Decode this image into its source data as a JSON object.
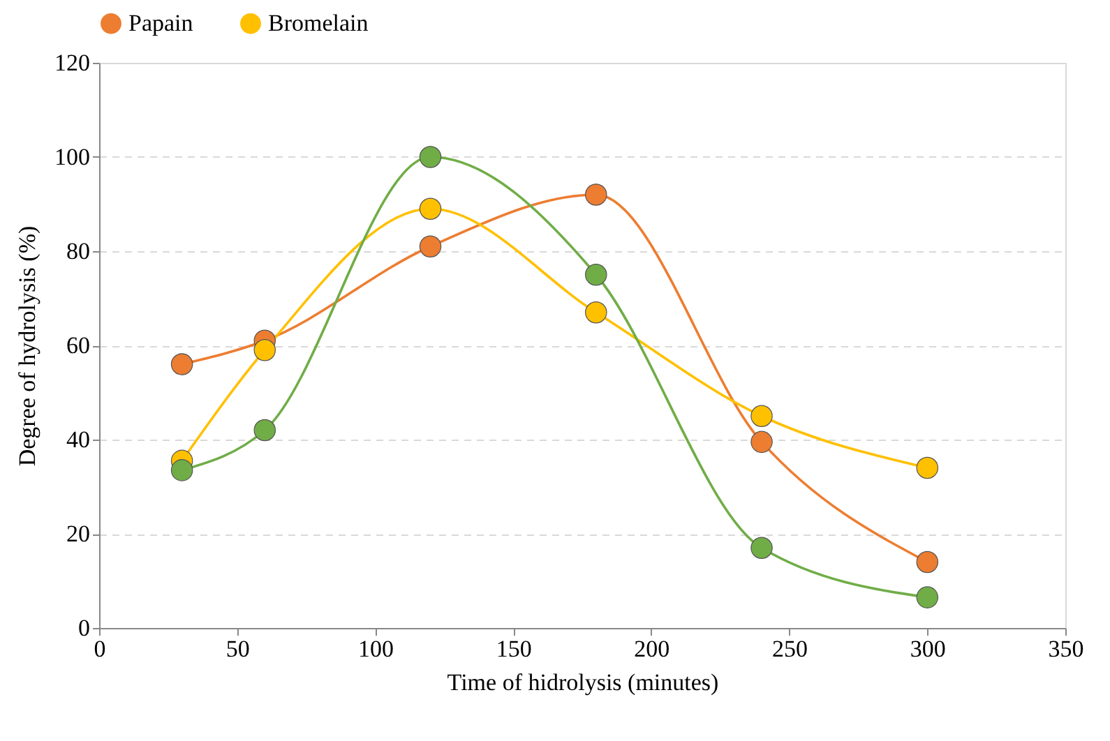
{
  "chart_data": {
    "type": "line",
    "xlabel": "Time of hidrolysis (minutes)",
    "ylabel": "Degree of hydrolysis (%)",
    "x": [
      30,
      60,
      120,
      180,
      240,
      300
    ],
    "series": [
      {
        "name": "Papain",
        "color": "#ed7d31",
        "values": [
          56,
          61,
          81,
          92,
          39.5,
          14
        ]
      },
      {
        "name": "Bromelain",
        "color": "#ffc000",
        "values": [
          35.5,
          59,
          89,
          67,
          45,
          34
        ]
      },
      {
        "color": "#70ad47",
        "values": [
          33.5,
          42,
          100,
          75,
          17,
          6.5
        ]
      }
    ],
    "xlim": [
      0,
      350
    ],
    "xticks": [
      0,
      50,
      100,
      150,
      200,
      250,
      300,
      350
    ],
    "ylim": [
      0,
      120
    ],
    "yticks": [
      0,
      20,
      40,
      60,
      80,
      100,
      120
    ],
    "grid": "y",
    "legend": "top",
    "marker": "circle",
    "line_style": "solid"
  }
}
